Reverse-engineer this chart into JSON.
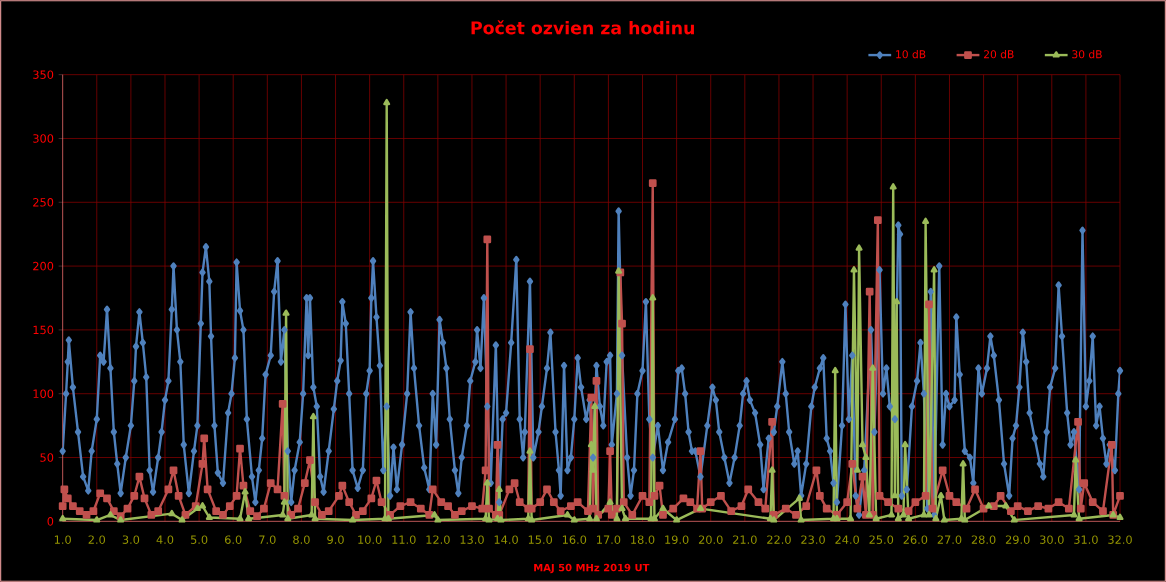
{
  "chart_data": {
    "type": "line",
    "title": "Počet ozvien za hodinu",
    "xlabel": "MAJ 50 MHz  2019  UT",
    "xlim": [
      1,
      32
    ],
    "ylim": [
      0,
      350
    ],
    "yticks": [
      0,
      50,
      100,
      150,
      200,
      250,
      300,
      350
    ],
    "xticks": [
      {
        "value": 1,
        "label": "1.0"
      },
      {
        "value": 2,
        "label": "2.0"
      },
      {
        "value": 3,
        "label": "3.0"
      },
      {
        "value": 4,
        "label": "4.0"
      },
      {
        "value": 5,
        "label": "5.0"
      },
      {
        "value": 6,
        "label": "6.0"
      },
      {
        "value": 7,
        "label": "7.0"
      },
      {
        "value": 8,
        "label": "8.0"
      },
      {
        "value": 9,
        "label": "9.0"
      },
      {
        "value": 10,
        "label": "10.0"
      },
      {
        "value": 11,
        "label": "11.0"
      },
      {
        "value": 12,
        "label": "12.0"
      },
      {
        "value": 13,
        "label": "13.0"
      },
      {
        "value": 14,
        "label": "14.0"
      },
      {
        "value": 15,
        "label": "15.0"
      },
      {
        "value": 16,
        "label": "16.0"
      },
      {
        "value": 17,
        "label": "17.0"
      },
      {
        "value": 18,
        "label": "18.0"
      },
      {
        "value": 19,
        "label": "19.0"
      },
      {
        "value": 20,
        "label": "20.0"
      },
      {
        "value": 21,
        "label": "21.0"
      },
      {
        "value": 22,
        "label": "22.0"
      },
      {
        "value": 23,
        "label": "23.0"
      },
      {
        "value": 24,
        "label": "24.0"
      },
      {
        "value": 25,
        "label": "25.0"
      },
      {
        "value": 26,
        "label": "26.0"
      },
      {
        "value": 27,
        "label": "27.0"
      },
      {
        "value": 28,
        "label": "28.0"
      },
      {
        "value": 29,
        "label": "29.0"
      },
      {
        "value": 30,
        "label": "30.0"
      },
      {
        "value": 31,
        "label": "31.0"
      },
      {
        "value": 32,
        "label": "32.0"
      }
    ],
    "grid": true,
    "legend": "top right",
    "series": [
      {
        "name": "10 dB",
        "color": "#4f81bd",
        "marker": "diamond",
        "x": [
          1.0,
          1.1,
          1.15,
          1.18,
          1.3,
          1.45,
          1.6,
          1.75,
          1.85,
          2.0,
          2.1,
          2.2,
          2.3,
          2.4,
          2.5,
          2.6,
          2.7,
          2.85,
          3.0,
          3.1,
          3.15,
          3.25,
          3.35,
          3.45,
          3.55,
          3.65,
          3.8,
          3.9,
          4.0,
          4.1,
          4.2,
          4.25,
          4.35,
          4.45,
          4.55,
          4.7,
          4.85,
          4.95,
          5.05,
          5.1,
          5.2,
          5.3,
          5.35,
          5.45,
          5.55,
          5.7,
          5.85,
          5.95,
          6.05,
          6.1,
          6.2,
          6.3,
          6.4,
          6.55,
          6.65,
          6.75,
          6.85,
          6.95,
          7.1,
          7.2,
          7.3,
          7.4,
          7.5,
          7.6,
          7.7,
          7.8,
          7.95,
          8.05,
          8.15,
          8.2,
          8.25,
          8.35,
          8.45,
          8.55,
          8.65,
          8.8,
          8.95,
          9.05,
          9.15,
          9.2,
          9.3,
          9.4,
          9.5,
          9.65,
          9.8,
          9.9,
          10.0,
          10.05,
          10.1,
          10.2,
          10.3,
          10.4,
          10.5,
          10.6,
          10.7,
          10.8,
          10.95,
          11.1,
          11.2,
          11.3,
          11.45,
          11.6,
          11.75,
          11.85,
          11.95,
          12.05,
          12.15,
          12.25,
          12.35,
          12.5,
          12.6,
          12.7,
          12.85,
          12.95,
          13.1,
          13.15,
          13.25,
          13.35,
          13.45,
          13.55,
          13.7,
          13.8,
          13.9,
          14.0,
          14.15,
          14.3,
          14.4,
          14.5,
          14.55,
          14.7,
          14.8,
          14.95,
          15.05,
          15.2,
          15.3,
          15.45,
          15.55,
          15.6,
          15.7,
          15.8,
          15.9,
          16.0,
          16.1,
          16.2,
          16.35,
          16.45,
          16.55,
          16.65,
          16.75,
          16.85,
          16.95,
          17.05,
          17.1,
          17.25,
          17.3,
          17.4,
          17.55,
          17.65,
          17.75,
          17.85,
          18.0,
          18.1,
          18.2,
          18.3,
          18.45,
          18.6,
          18.75,
          18.95,
          19.05,
          19.15,
          19.25,
          19.35,
          19.45,
          19.55,
          19.7,
          19.9,
          20.05,
          20.15,
          20.25,
          20.4,
          20.55,
          20.7,
          20.85,
          20.95,
          21.05,
          21.15,
          21.3,
          21.45,
          21.55,
          21.7,
          21.85,
          21.95,
          22.1,
          22.2,
          22.3,
          22.45,
          22.55,
          22.65,
          22.8,
          22.95,
          23.05,
          23.2,
          23.3,
          23.4,
          23.5,
          23.6,
          23.7,
          23.85,
          23.95,
          24.05,
          24.15,
          24.25,
          24.35,
          24.5,
          24.7,
          24.8,
          24.95,
          25.05,
          25.15,
          25.25,
          25.4,
          25.5,
          25.55,
          25.6,
          25.75,
          25.9,
          26.05,
          26.15,
          26.25,
          26.35,
          26.45,
          26.55,
          26.7,
          26.8,
          26.9,
          27.0,
          27.15,
          27.2,
          27.3,
          27.45,
          27.6,
          27.7,
          27.85,
          27.95,
          28.1,
          28.2,
          28.3,
          28.45,
          28.6,
          28.75,
          28.85,
          28.95,
          29.05,
          29.15,
          29.25,
          29.35,
          29.5,
          29.65,
          29.75,
          29.85,
          29.95,
          30.1,
          30.2,
          30.3,
          30.45,
          30.55,
          30.65,
          30.8,
          30.9,
          31.0,
          31.1,
          31.2,
          31.3,
          31.4,
          31.5,
          31.6,
          31.7,
          31.85,
          31.95,
          32.0
        ],
        "values": [
          55,
          100,
          125,
          142,
          105,
          70,
          35,
          24,
          55,
          80,
          130,
          125,
          166,
          120,
          70,
          45,
          22,
          50,
          75,
          110,
          137,
          164,
          140,
          113,
          40,
          23,
          50,
          70,
          95,
          110,
          166,
          200,
          150,
          125,
          60,
          22,
          55,
          75,
          155,
          195,
          215,
          188,
          145,
          75,
          38,
          30,
          85,
          100,
          128,
          203,
          165,
          150,
          80,
          35,
          15,
          40,
          65,
          115,
          130,
          180,
          204,
          125,
          150,
          55,
          15,
          40,
          62,
          100,
          175,
          130,
          175,
          105,
          90,
          35,
          23,
          55,
          88,
          110,
          126,
          172,
          155,
          100,
          40,
          26,
          40,
          100,
          118,
          175,
          204,
          160,
          122,
          40,
          90,
          20,
          58,
          25,
          60,
          100,
          164,
          120,
          75,
          42,
          25,
          100,
          60,
          158,
          140,
          120,
          80,
          40,
          22,
          50,
          75,
          110,
          125,
          150,
          120,
          175,
          90,
          30,
          138,
          15,
          80,
          85,
          140,
          205,
          80,
          50,
          70,
          188,
          50,
          70,
          90,
          120,
          148,
          70,
          40,
          20,
          122,
          40,
          50,
          80,
          128,
          105,
          80,
          95,
          50,
          122,
          90,
          75,
          125,
          130,
          60,
          100,
          243,
          130,
          50,
          20,
          40,
          100,
          118,
          172,
          80,
          50,
          75,
          40,
          62,
          80,
          118,
          120,
          100,
          70,
          55,
          55,
          35,
          75,
          105,
          95,
          70,
          50,
          30,
          50,
          75,
          100,
          110,
          95,
          85,
          60,
          25,
          65,
          70,
          90,
          125,
          100,
          70,
          45,
          55,
          20,
          45,
          90,
          105,
          120,
          128,
          65,
          55,
          30,
          15,
          75,
          170,
          80,
          130,
          20,
          5,
          40,
          150,
          70,
          197,
          100,
          120,
          90,
          80,
          232,
          225,
          20,
          25,
          90,
          110,
          140,
          100,
          10,
          180,
          5,
          200,
          60,
          100,
          90,
          95,
          160,
          115,
          55,
          50,
          30,
          120,
          100,
          120,
          145,
          130,
          95,
          45,
          20,
          65,
          75,
          105,
          148,
          125,
          85,
          65,
          45,
          35,
          70,
          105,
          120,
          185,
          145,
          85,
          60,
          70,
          25,
          228,
          90,
          110,
          145,
          75,
          90,
          65,
          45,
          60,
          40,
          100,
          118
        ]
      },
      {
        "name": "20 dB",
        "color": "#c0504d",
        "marker": "square",
        "x": [
          1.0,
          1.05,
          1.15,
          1.3,
          1.5,
          1.7,
          1.9,
          2.1,
          2.3,
          2.5,
          2.7,
          2.9,
          3.1,
          3.25,
          3.4,
          3.6,
          3.8,
          4.1,
          4.25,
          4.4,
          4.6,
          4.9,
          5.1,
          5.15,
          5.25,
          5.5,
          5.7,
          5.9,
          6.1,
          6.2,
          6.3,
          6.5,
          6.7,
          6.9,
          7.1,
          7.3,
          7.45,
          7.5,
          7.7,
          7.9,
          8.1,
          8.25,
          8.4,
          8.6,
          8.8,
          9.1,
          9.2,
          9.4,
          9.6,
          9.8,
          10.05,
          10.2,
          10.35,
          10.6,
          10.9,
          11.2,
          11.5,
          11.75,
          11.85,
          12.1,
          12.3,
          12.5,
          12.7,
          13.0,
          13.3,
          13.4,
          13.45,
          13.5,
          13.7,
          13.75,
          13.8,
          14.1,
          14.25,
          14.4,
          14.65,
          14.7,
          14.75,
          15.0,
          15.2,
          15.4,
          15.6,
          15.9,
          16.1,
          16.4,
          16.5,
          16.55,
          16.65,
          16.7,
          17.0,
          17.05,
          17.1,
          17.25,
          17.35,
          17.4,
          17.45,
          17.7,
          18.0,
          18.2,
          18.3,
          18.35,
          18.5,
          18.6,
          18.9,
          19.2,
          19.4,
          19.6,
          19.7,
          19.75,
          20.0,
          20.3,
          20.6,
          20.9,
          21.1,
          21.4,
          21.6,
          21.8,
          21.85,
          22.2,
          22.5,
          22.8,
          23.1,
          23.2,
          23.4,
          23.7,
          24.0,
          24.15,
          24.3,
          24.45,
          24.55,
          24.66,
          24.75,
          24.9,
          24.95,
          25.2,
          25.5,
          25.8,
          26.0,
          26.3,
          26.4,
          26.5,
          26.8,
          27.0,
          27.2,
          27.5,
          27.75,
          28.0,
          28.3,
          28.5,
          28.8,
          29.0,
          29.3,
          29.6,
          29.9,
          30.2,
          30.5,
          30.77,
          30.85,
          30.95,
          31.2,
          31.5,
          31.76,
          31.8,
          32.0
        ],
        "values": [
          12,
          25,
          18,
          12,
          8,
          5,
          8,
          22,
          18,
          8,
          4,
          10,
          20,
          35,
          18,
          5,
          8,
          25,
          40,
          20,
          5,
          12,
          45,
          65,
          25,
          8,
          5,
          12,
          20,
          57,
          28,
          8,
          4,
          10,
          30,
          25,
          92,
          20,
          5,
          10,
          30,
          48,
          15,
          5,
          8,
          20,
          28,
          15,
          5,
          8,
          18,
          32,
          15,
          5,
          12,
          15,
          10,
          5,
          25,
          15,
          12,
          5,
          8,
          12,
          10,
          40,
          221,
          10,
          5,
          60,
          5,
          25,
          30,
          15,
          10,
          135,
          10,
          15,
          25,
          15,
          8,
          12,
          15,
          8,
          97,
          10,
          110,
          5,
          10,
          55,
          5,
          10,
          195,
          155,
          15,
          5,
          20,
          15,
          265,
          20,
          28,
          5,
          10,
          18,
          15,
          10,
          55,
          10,
          15,
          20,
          8,
          12,
          25,
          15,
          10,
          78,
          5,
          10,
          5,
          12,
          40,
          20,
          10,
          5,
          15,
          45,
          10,
          35,
          5,
          180,
          5,
          236,
          20,
          15,
          10,
          8,
          15,
          20,
          170,
          10,
          40,
          20,
          15,
          10,
          25,
          10,
          12,
          20,
          8,
          12,
          8,
          12,
          10,
          15,
          10,
          78,
          10,
          30,
          15,
          8,
          60,
          5,
          20
        ]
      },
      {
        "name": "30 dB",
        "color": "#9bbb59",
        "marker": "triangle",
        "x": [
          1.0,
          2.0,
          2.4,
          2.7,
          4.2,
          4.5,
          4.95,
          5.1,
          5.3,
          6.2,
          6.35,
          6.45,
          7.45,
          7.5,
          7.55,
          7.6,
          8.3,
          8.35,
          8.4,
          9.5,
          10.45,
          10.5,
          10.55,
          11.9,
          12.0,
          13.4,
          13.45,
          13.5,
          13.75,
          13.8,
          13.85,
          14.65,
          14.7,
          14.75,
          15.8,
          16.0,
          16.45,
          16.5,
          16.55,
          16.6,
          16.65,
          17.05,
          17.25,
          17.3,
          17.4,
          17.5,
          18.25,
          18.3,
          18.35,
          18.6,
          19.0,
          19.7,
          21.75,
          21.8,
          21.85,
          22.6,
          22.65,
          23.6,
          23.65,
          23.7,
          24.1,
          24.2,
          24.3,
          24.35,
          24.45,
          24.55,
          24.65,
          24.75,
          24.85,
          25.3,
          25.35,
          25.4,
          25.45,
          25.5,
          25.65,
          25.7,
          25.8,
          26.25,
          26.3,
          26.4,
          26.55,
          26.6,
          26.75,
          26.85,
          27.35,
          27.4,
          27.45,
          28.15,
          28.65,
          28.9,
          30.65,
          30.7,
          30.8,
          31.8,
          32.0
        ],
        "values": [
          2,
          1,
          5,
          1,
          6,
          1,
          10,
          12,
          3,
          2,
          23,
          2,
          5,
          15,
          163,
          2,
          5,
          82,
          2,
          1,
          2,
          328,
          2,
          5,
          1,
          2,
          30,
          1,
          2,
          25,
          1,
          2,
          55,
          1,
          5,
          1,
          2,
          60,
          40,
          90,
          2,
          15,
          2,
          196,
          10,
          2,
          2,
          175,
          2,
          10,
          1,
          10,
          2,
          40,
          1,
          18,
          1,
          2,
          118,
          2,
          2,
          197,
          40,
          214,
          60,
          50,
          5,
          120,
          2,
          5,
          262,
          20,
          172,
          2,
          5,
          60,
          2,
          5,
          235,
          5,
          197,
          2,
          20,
          1,
          2,
          45,
          1,
          12,
          12,
          1,
          5,
          48,
          2,
          5,
          3
        ]
      }
    ]
  }
}
